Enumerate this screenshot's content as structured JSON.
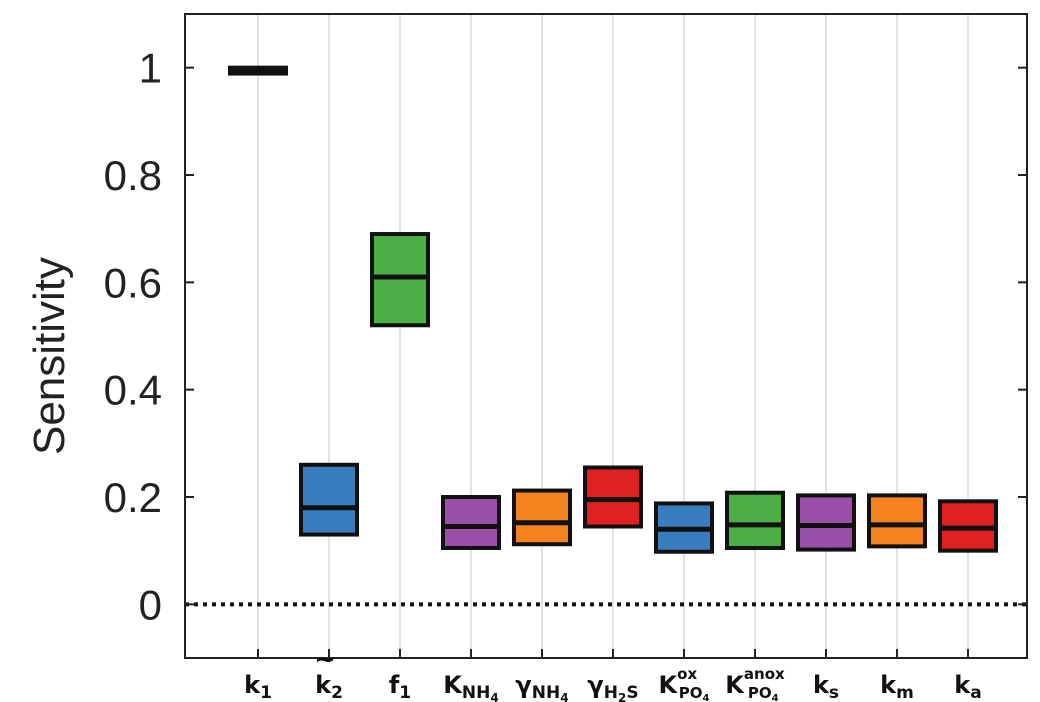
{
  "chart_data": {
    "type": "boxplot",
    "title": "",
    "xlabel": "",
    "ylabel": "Sensitivity",
    "ylim": [
      -0.1,
      1.1
    ],
    "yticks": [
      0,
      0.2,
      0.4,
      0.6,
      0.8,
      1
    ],
    "ytick_labels": [
      "0",
      "0.2",
      "0.4",
      "0.6",
      "0.8",
      "1"
    ],
    "grid": "vertical",
    "reference_line": {
      "y": 0,
      "style": "dotted"
    },
    "categories": [
      {
        "label": "k₁",
        "main": "k",
        "sub": "1",
        "sup": "",
        "tilde": false
      },
      {
        "label": "k̃₂",
        "main": "k",
        "sub": "2",
        "sup": "",
        "tilde": true
      },
      {
        "label": "f₁",
        "main": "f",
        "sub": "1",
        "sup": "",
        "tilde": false
      },
      {
        "label": "K_NH4",
        "main": "K",
        "sub": "NH",
        "sub2": "4",
        "sup": "",
        "tilde": false
      },
      {
        "label": "γ_NH4",
        "main": "γ",
        "sub": "NH",
        "sub2": "4",
        "sup": "",
        "tilde": false
      },
      {
        "label": "γ_H2S",
        "main": "γ",
        "sub": "H",
        "sub2": "2",
        "sub3": "S",
        "sup": "",
        "tilde": false
      },
      {
        "label": "K_PO4^ox",
        "main": "K",
        "sub": "PO",
        "sub2": "4",
        "sup": "ox",
        "tilde": false
      },
      {
        "label": "K_PO4^anox",
        "main": "K",
        "sub": "PO",
        "sub2": "4",
        "sup": "anox",
        "tilde": false
      },
      {
        "label": "k_s",
        "main": "k",
        "sub": "s",
        "sup": "",
        "tilde": false
      },
      {
        "label": "k_m",
        "main": "k",
        "sub": "m",
        "sup": "",
        "tilde": false
      },
      {
        "label": "k_a",
        "main": "k",
        "sub": "a",
        "sup": "",
        "tilde": false
      }
    ],
    "boxes": [
      {
        "q1": 0.989,
        "median": 0.995,
        "q3": 1.0,
        "color": "#c02020"
      },
      {
        "q1": 0.13,
        "median": 0.18,
        "q3": 0.26,
        "color": "#3a7dbf"
      },
      {
        "q1": 0.52,
        "median": 0.61,
        "q3": 0.69,
        "color": "#4caf45"
      },
      {
        "q1": 0.105,
        "median": 0.145,
        "q3": 0.2,
        "color": "#9a4fa8"
      },
      {
        "q1": 0.112,
        "median": 0.152,
        "q3": 0.212,
        "color": "#f5821f"
      },
      {
        "q1": 0.145,
        "median": 0.195,
        "q3": 0.255,
        "color": "#e02020"
      },
      {
        "q1": 0.098,
        "median": 0.14,
        "q3": 0.188,
        "color": "#3a7dbf"
      },
      {
        "q1": 0.105,
        "median": 0.148,
        "q3": 0.208,
        "color": "#4caf45"
      },
      {
        "q1": 0.102,
        "median": 0.147,
        "q3": 0.203,
        "color": "#9a4fa8"
      },
      {
        "q1": 0.108,
        "median": 0.148,
        "q3": 0.203,
        "color": "#f5821f"
      },
      {
        "q1": 0.1,
        "median": 0.142,
        "q3": 0.192,
        "color": "#e02020"
      }
    ]
  }
}
